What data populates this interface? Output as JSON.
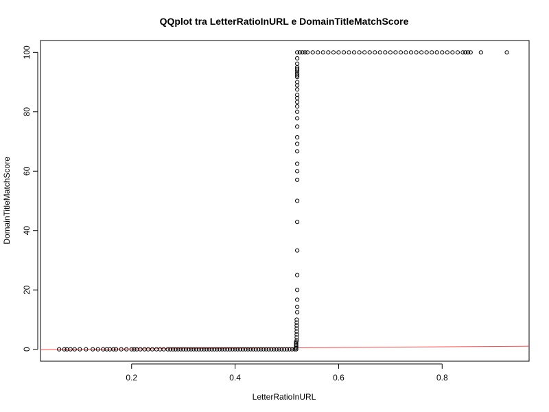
{
  "chart_data": {
    "type": "scatter",
    "title": "QQplot tra LetterRatioInURL e DomainTitleMatchScore",
    "xlabel": "LetterRatioInURL",
    "ylabel": "DomainTitleMatchScore",
    "xlim": [
      0.024,
      0.968
    ],
    "ylim": [
      -4,
      104
    ],
    "x_ticks": [
      0.2,
      0.4,
      0.6,
      0.8
    ],
    "x_tick_labels": [
      "0.2",
      "0.4",
      "0.6",
      "0.8"
    ],
    "y_ticks": [
      0,
      20,
      40,
      60,
      80,
      100
    ],
    "y_tick_labels": [
      "0",
      "20",
      "40",
      "60",
      "80",
      "100"
    ],
    "grid": false,
    "marker": "open-circle",
    "marker_color": "#000000",
    "reference_line": {
      "color": "#ff4a4a",
      "points": [
        [
          0.024,
          -0.1
        ],
        [
          0.968,
          1.05
        ]
      ]
    },
    "series": [
      {
        "points_zero_score": [
          [
            0.06,
            0
          ],
          [
            0.07,
            0
          ],
          [
            0.075,
            0
          ],
          [
            0.082,
            0
          ],
          [
            0.09,
            0
          ],
          [
            0.1,
            0
          ],
          [
            0.112,
            0
          ],
          [
            0.125,
            0
          ],
          [
            0.135,
            0
          ],
          [
            0.145,
            0
          ],
          [
            0.152,
            0
          ],
          [
            0.158,
            0
          ],
          [
            0.165,
            0
          ],
          [
            0.17,
            0
          ],
          [
            0.18,
            0
          ],
          [
            0.19,
            0
          ],
          [
            0.2,
            0
          ],
          [
            0.205,
            0
          ],
          [
            0.21,
            0
          ],
          [
            0.217,
            0
          ],
          [
            0.225,
            0
          ],
          [
            0.232,
            0
          ],
          [
            0.24,
            0
          ],
          [
            0.248,
            0
          ],
          [
            0.255,
            0
          ],
          [
            0.262,
            0
          ],
          [
            0.27,
            0
          ],
          [
            0.275,
            0
          ],
          [
            0.28,
            0
          ],
          [
            0.285,
            0
          ],
          [
            0.29,
            0
          ],
          [
            0.295,
            0
          ],
          [
            0.3,
            0
          ],
          [
            0.305,
            0
          ],
          [
            0.31,
            0
          ],
          [
            0.315,
            0
          ],
          [
            0.32,
            0
          ],
          [
            0.325,
            0
          ],
          [
            0.33,
            0
          ],
          [
            0.335,
            0
          ],
          [
            0.34,
            0
          ],
          [
            0.345,
            0
          ],
          [
            0.35,
            0
          ],
          [
            0.355,
            0
          ],
          [
            0.36,
            0
          ],
          [
            0.365,
            0
          ],
          [
            0.37,
            0
          ],
          [
            0.375,
            0
          ],
          [
            0.38,
            0
          ],
          [
            0.385,
            0
          ],
          [
            0.39,
            0
          ],
          [
            0.395,
            0
          ],
          [
            0.4,
            0
          ],
          [
            0.405,
            0
          ],
          [
            0.41,
            0
          ],
          [
            0.415,
            0
          ],
          [
            0.42,
            0
          ],
          [
            0.425,
            0
          ],
          [
            0.43,
            0
          ],
          [
            0.435,
            0
          ],
          [
            0.44,
            0
          ],
          [
            0.445,
            0
          ],
          [
            0.45,
            0
          ],
          [
            0.455,
            0
          ],
          [
            0.46,
            0
          ],
          [
            0.465,
            0
          ],
          [
            0.47,
            0
          ],
          [
            0.475,
            0
          ],
          [
            0.48,
            0
          ],
          [
            0.485,
            0
          ],
          [
            0.49,
            0
          ],
          [
            0.495,
            0
          ],
          [
            0.5,
            0
          ],
          [
            0.505,
            0
          ],
          [
            0.51,
            0
          ],
          [
            0.515,
            0
          ],
          [
            0.518,
            0
          ]
        ],
        "points_vertical_step": [
          [
            0.518,
            0.5
          ],
          [
            0.518,
            1
          ],
          [
            0.518,
            1.5
          ],
          [
            0.518,
            2
          ],
          [
            0.518,
            2.5
          ],
          [
            0.519,
            3
          ],
          [
            0.519,
            4
          ],
          [
            0.519,
            5
          ],
          [
            0.519,
            6
          ],
          [
            0.519,
            7
          ],
          [
            0.519,
            8
          ],
          [
            0.519,
            9
          ],
          [
            0.519,
            10
          ],
          [
            0.52,
            12.5
          ],
          [
            0.52,
            14.3
          ],
          [
            0.52,
            16.7
          ],
          [
            0.52,
            20
          ],
          [
            0.52,
            25
          ],
          [
            0.52,
            33.3
          ],
          [
            0.52,
            42.9
          ],
          [
            0.52,
            50
          ],
          [
            0.52,
            57.1
          ],
          [
            0.52,
            60
          ],
          [
            0.52,
            62.5
          ],
          [
            0.52,
            66.7
          ],
          [
            0.52,
            69.2
          ],
          [
            0.52,
            71.4
          ],
          [
            0.52,
            75
          ],
          [
            0.52,
            77.8
          ],
          [
            0.52,
            80
          ],
          [
            0.52,
            81.8
          ],
          [
            0.52,
            83.3
          ],
          [
            0.52,
            84.6
          ],
          [
            0.52,
            85.7
          ],
          [
            0.52,
            87.5
          ],
          [
            0.52,
            88.9
          ],
          [
            0.52,
            90
          ],
          [
            0.52,
            91.7
          ],
          [
            0.52,
            92.3
          ],
          [
            0.52,
            93
          ],
          [
            0.52,
            93.8
          ],
          [
            0.52,
            94.4
          ],
          [
            0.52,
            95
          ],
          [
            0.52,
            96.2
          ],
          [
            0.52,
            98
          ],
          [
            0.52,
            100
          ]
        ],
        "points_hundred_score": [
          [
            0.525,
            100
          ],
          [
            0.53,
            100
          ],
          [
            0.535,
            100
          ],
          [
            0.54,
            100
          ],
          [
            0.55,
            100
          ],
          [
            0.56,
            100
          ],
          [
            0.57,
            100
          ],
          [
            0.58,
            100
          ],
          [
            0.59,
            100
          ],
          [
            0.6,
            100
          ],
          [
            0.61,
            100
          ],
          [
            0.62,
            100
          ],
          [
            0.63,
            100
          ],
          [
            0.64,
            100
          ],
          [
            0.65,
            100
          ],
          [
            0.66,
            100
          ],
          [
            0.67,
            100
          ],
          [
            0.68,
            100
          ],
          [
            0.69,
            100
          ],
          [
            0.7,
            100
          ],
          [
            0.71,
            100
          ],
          [
            0.72,
            100
          ],
          [
            0.73,
            100
          ],
          [
            0.74,
            100
          ],
          [
            0.75,
            100
          ],
          [
            0.76,
            100
          ],
          [
            0.77,
            100
          ],
          [
            0.78,
            100
          ],
          [
            0.79,
            100
          ],
          [
            0.8,
            100
          ],
          [
            0.81,
            100
          ],
          [
            0.82,
            100
          ],
          [
            0.83,
            100
          ],
          [
            0.84,
            100
          ],
          [
            0.845,
            100
          ],
          [
            0.85,
            100
          ],
          [
            0.855,
            100
          ],
          [
            0.875,
            100
          ],
          [
            0.925,
            100
          ]
        ]
      }
    ]
  }
}
